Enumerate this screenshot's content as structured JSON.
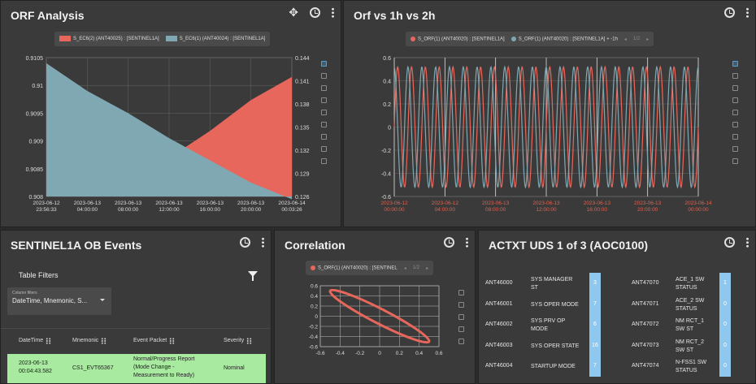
{
  "orf_panel": {
    "title": "ORF Analysis",
    "legend": [
      {
        "label": "S_EC6(2) (ANT40025) : [SENTINEL1A]",
        "color": "#e8675c"
      },
      {
        "label": "S_EC6(1) (ANT40024) : [SENTINEL1A]",
        "color": "#7fa8b2"
      }
    ],
    "left_ticks": [
      "0.9105",
      "0.91",
      "0.9095",
      "0.909",
      "0.9085",
      "0.908"
    ],
    "right_ticks": [
      "0.144",
      "0.141",
      "0.138",
      "0.135",
      "0.132",
      "0.129",
      "0.126"
    ],
    "x_ticks": [
      [
        "2023-06-12",
        "23:56:33"
      ],
      [
        "2023-06-13",
        "04:00:00"
      ],
      [
        "2023-06-13",
        "08:00:00"
      ],
      [
        "2023-06-13",
        "12:00:00"
      ],
      [
        "2023-06-13",
        "16:00:00"
      ],
      [
        "2023-06-13",
        "20:00:00"
      ],
      [
        "2023-06-14",
        "00:03:26"
      ]
    ]
  },
  "orf_vs_panel": {
    "title": "Orf vs 1h vs 2h",
    "legend": [
      {
        "label": "S_ORF(1) (ANT40020) : [SENTINEL1A]",
        "color": "#e8675c"
      },
      {
        "label": "S_ORF(1) (ANT40020) : [SENTINEL1A] + -1h",
        "color": "#7fa8b2"
      }
    ],
    "pager": "1/2",
    "y_ticks": [
      "0.6",
      "0.4",
      "0.2",
      "0",
      "-0.2",
      "-0.4",
      "-0.6"
    ],
    "x_ticks": [
      [
        "2023-06-12",
        "00:00:00"
      ],
      [
        "2023-06-12",
        "04:00:00"
      ],
      [
        "2023-06-13",
        "08:00:00"
      ],
      [
        "2023-06-13",
        "12:00:00"
      ],
      [
        "2023-06-13",
        "16:00:00"
      ],
      [
        "2023-06-13",
        "20:00:00"
      ],
      [
        "2023-06-14",
        "00:00:00"
      ]
    ]
  },
  "events_panel": {
    "title": "SENTINEL1A OB Events",
    "filters_label": "Table Filters",
    "column_filters_label": "Column filters",
    "column_filters_value": "DateTime, Mnemonic, S...",
    "columns": [
      "DateTime",
      "Mnemonic",
      "Event Packet",
      "Severity"
    ],
    "rows": [
      {
        "datetime": [
          "2023-06-13",
          "00:04:43.582"
        ],
        "mnemonic": "CS1_EVT65367",
        "packet": [
          "Normal/Progress Report",
          "(Mode Change -",
          "Measurement to Ready)"
        ],
        "severity": "Nominal"
      }
    ]
  },
  "correlation_panel": {
    "title": "Correlation",
    "legend": "S_ORF(1) (ANT40020) : [SENTINEL",
    "legend_color": "#e8675c",
    "pager": "1/2",
    "y_ticks": [
      "0.6",
      "0.4",
      "0.2",
      "0",
      "-0.2",
      "-0.4",
      "-0.6"
    ],
    "x_ticks": [
      "-0.6",
      "-0.4",
      "-0.2",
      "0",
      "0.2",
      "0.4",
      "0.6"
    ]
  },
  "uds_panel": {
    "title": "ACTXT UDS 1 of 3 (AOC0100)",
    "left_rows": [
      {
        "id": "ANT46000",
        "name": [
          "SYS MANAGER",
          "ST"
        ],
        "value": "3"
      },
      {
        "id": "ANT46001",
        "name": [
          "SYS OPER MODE"
        ],
        "value": "7"
      },
      {
        "id": "ANT46002",
        "name": [
          "SYS PRV OP",
          "MODE"
        ],
        "value": "6"
      },
      {
        "id": "ANT46003",
        "name": [
          "SYS OPER STATE"
        ],
        "value": "16"
      },
      {
        "id": "ANT46004",
        "name": [
          "STARTUP MODE"
        ],
        "value": "7"
      }
    ],
    "right_rows": [
      {
        "id": "ANT47070",
        "name": [
          "ACE_1 SW",
          "STATUS"
        ],
        "value": "1"
      },
      {
        "id": "ANT47071",
        "name": [
          "ACE_2 SW",
          "STATUS"
        ],
        "value": "0"
      },
      {
        "id": "ANT47072",
        "name": [
          "NM RCT_1",
          "SW ST"
        ],
        "value": "0"
      },
      {
        "id": "ANT47073",
        "name": [
          "NM RCT_2",
          "SW ST"
        ],
        "value": "0"
      },
      {
        "id": "ANT47074",
        "name": [
          "N-FSS1 SW",
          "STATUS"
        ],
        "value": "0"
      }
    ]
  },
  "chart_data": [
    {
      "type": "area",
      "title": "ORF Analysis",
      "x": [
        "2023-06-12 23:56:33",
        "2023-06-13 04:00:00",
        "2023-06-13 08:00:00",
        "2023-06-13 12:00:00",
        "2023-06-13 16:00:00",
        "2023-06-13 20:00:00",
        "2023-06-14 00:03:26"
      ],
      "series": [
        {
          "name": "S_EC6(2) (ANT40025) : [SENTINEL1A]",
          "axis": "right",
          "values": [
            0.126,
            0.126,
            0.126,
            0.131,
            0.1345,
            0.1385,
            0.1415
          ]
        },
        {
          "name": "S_EC6(1) (ANT40024) : [SENTINEL1A]",
          "axis": "left",
          "values": [
            0.9104,
            0.9099,
            0.9095,
            0.90905,
            0.90865,
            0.90825,
            0.90795
          ]
        }
      ],
      "ylim_left": [
        0.908,
        0.9105
      ],
      "ylim_right": [
        0.126,
        0.144
      ],
      "grid": true
    },
    {
      "type": "line",
      "title": "Orf vs 1h vs 2h",
      "series": [
        {
          "name": "S_ORF(1) (ANT40020) : [SENTINEL1A]",
          "amplitude": 0.52,
          "cycles": 22,
          "phase": 0
        },
        {
          "name": "S_ORF(1) (ANT40020) : [SENTINEL1A] + -1h",
          "amplitude": 0.52,
          "cycles": 22,
          "phase": 1.6
        }
      ],
      "ylim": [
        -0.6,
        0.6
      ],
      "grid": true
    },
    {
      "type": "scatter",
      "title": "Correlation",
      "series": [
        {
          "name": "S_ORF(1) (ANT40020) : [SENTINEL",
          "shape": "ellipse",
          "center": [
            0,
            0
          ],
          "extent": [
            [
              -0.5,
              0.5
            ],
            [
              0.5,
              -0.5
            ]
          ]
        }
      ],
      "xlim": [
        -0.6,
        0.6
      ],
      "ylim": [
        -0.6,
        0.6
      ],
      "grid": true
    }
  ]
}
